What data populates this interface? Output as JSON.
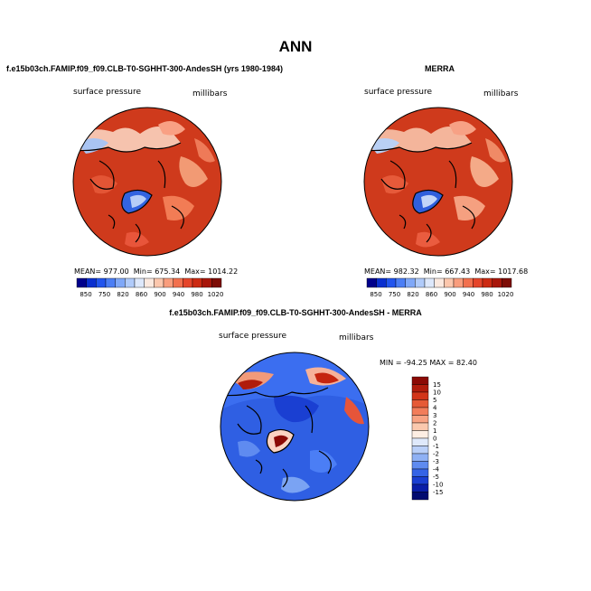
{
  "page": {
    "title": "ANN"
  },
  "panels": [
    {
      "case_title": "f.e15b03ch.FAMIP.f09_f09.CLB-T0-SGHHT-300-AndesSH (yrs 1980-1984)",
      "variable": "surface pressure",
      "units": "millibars",
      "stats": {
        "mean_label": "MEAN=",
        "mean": "977.00",
        "min_label": "Min=",
        "min": "675.34",
        "max_label": "Max=",
        "max": "1014.22"
      }
    },
    {
      "case_title": "MERRA",
      "variable": "surface pressure",
      "units": "millibars",
      "stats": {
        "mean_label": "MEAN=",
        "mean": "982.32",
        "min_label": "Min=",
        "min": "667.43",
        "max_label": "Max=",
        "max": "1017.68"
      }
    },
    {
      "case_title": "f.e15b03ch.FAMIP.f09_f09.CLB-T0-SGHHT-300-AndesSH - MERRA",
      "variable": "surface pressure",
      "units": "millibars",
      "stats_text": "MIN = -94.25 MAX =  82.40"
    }
  ],
  "chart_data": [
    {
      "type": "heatmap",
      "projection": "polar stereographic (north pole)",
      "title": "f.e15b03ch.FAMIP.f09_f09.CLB-T0-SGHHT-300-AndesSH (yrs 1980-1984)",
      "field": "surface pressure",
      "units": "millibars",
      "mean": 977.0,
      "min": 675.34,
      "max": 1014.22,
      "colorbar_levels": [
        850,
        750,
        820,
        860,
        900,
        940,
        980,
        1020
      ],
      "colorbar_colors": [
        "#00008b",
        "#0a2fcf",
        "#2255ee",
        "#4b7ef5",
        "#7fa8f8",
        "#b0cbfa",
        "#dde8fb",
        "#fbe9df",
        "#fcc7ad",
        "#f99d7d",
        "#f2704e",
        "#e5452a",
        "#cc2a12",
        "#a8160a",
        "#7d0c05"
      ]
    },
    {
      "type": "heatmap",
      "projection": "polar stereographic (north pole)",
      "title": "MERRA",
      "field": "surface pressure",
      "units": "millibars",
      "mean": 982.32,
      "min": 667.43,
      "max": 1017.68,
      "colorbar_levels": [
        850,
        750,
        820,
        860,
        900,
        940,
        980,
        1020
      ],
      "colorbar_colors": [
        "#00008b",
        "#0a2fcf",
        "#2255ee",
        "#4b7ef5",
        "#7fa8f8",
        "#b0cbfa",
        "#dde8fb",
        "#fbe9df",
        "#fcc7ad",
        "#f99d7d",
        "#f2704e",
        "#e5452a",
        "#cc2a12",
        "#a8160a",
        "#7d0c05"
      ]
    },
    {
      "type": "heatmap",
      "projection": "polar stereographic (north pole)",
      "title": "f.e15b03ch.FAMIP.f09_f09.CLB-T0-SGHHT-300-AndesSH - MERRA",
      "field": "surface pressure difference",
      "units": "millibars",
      "min": -94.25,
      "max": 82.4,
      "colorbar_levels": [
        15,
        10,
        5,
        4,
        3,
        2,
        1,
        0,
        -1,
        -2,
        -3,
        -4,
        -5,
        -10,
        -15
      ],
      "colorbar_colors": [
        "#8b0a05",
        "#b01c0c",
        "#d23519",
        "#e65a36",
        "#f27d5a",
        "#f8a383",
        "#fbc9ae",
        "#fdeee3",
        "#dfe9fb",
        "#b9cff8",
        "#8fb1f4",
        "#5f8bf0",
        "#3564e6",
        "#1a3fd2",
        "#0a1ea8",
        "#020b70"
      ]
    }
  ]
}
